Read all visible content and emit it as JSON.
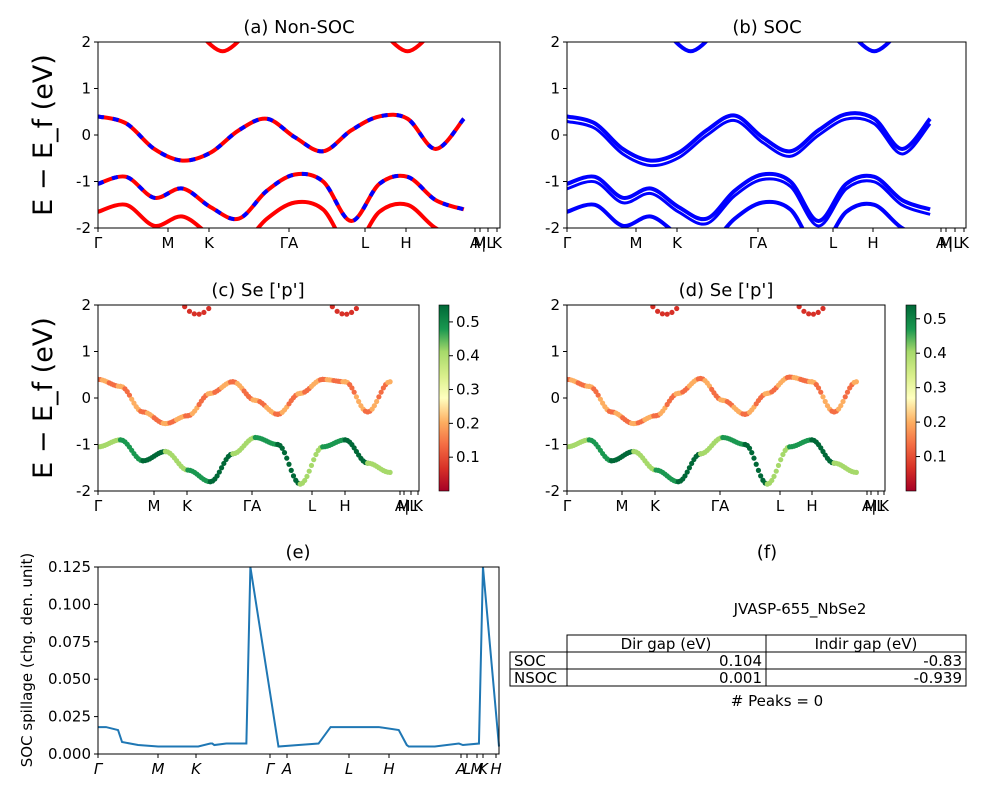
{
  "chart_data": [
    {
      "id": "a",
      "type": "line",
      "title": "(a) Non-SOC",
      "ylabel": "E − E_f (eV)",
      "ylim": [
        -2,
        2
      ],
      "yticks": [
        -2,
        -1,
        0,
        1,
        2
      ],
      "xticks": [
        "Γ",
        "M",
        "K",
        "ΓA",
        "L",
        "H",
        "A",
        "M",
        "|L",
        "K"
      ],
      "series": [
        {
          "color": "#ff0000",
          "dashed_overlay_color": "#0000ff",
          "x": [
            0,
            0.07,
            0.14,
            0.21,
            0.28,
            0.35,
            0.42,
            0.49,
            0.56,
            0.63,
            0.7,
            0.77,
            0.84,
            0.91
          ],
          "y": [
            0.4,
            0.25,
            -0.3,
            -0.55,
            -0.38,
            0.1,
            0.35,
            -0.05,
            -0.35,
            0.1,
            0.4,
            0.35,
            -0.3,
            0.35
          ]
        },
        {
          "color": "#ff0000",
          "dashed_overlay_color": "#0000ff",
          "x": [
            0,
            0.07,
            0.14,
            0.21,
            0.28,
            0.35,
            0.42,
            0.49,
            0.56,
            0.63,
            0.7,
            0.77,
            0.84,
            0.91
          ],
          "y": [
            -1.05,
            -0.9,
            -1.35,
            -1.15,
            -1.55,
            -1.8,
            -1.2,
            -0.85,
            -1.0,
            -1.85,
            -1.05,
            -0.9,
            -1.4,
            -1.6
          ]
        }
      ]
    },
    {
      "id": "b",
      "type": "line",
      "title": "(b) SOC",
      "ylim": [
        -2,
        2
      ],
      "yticks": [
        -2,
        -1,
        0,
        1,
        2
      ],
      "xticks": [
        "Γ",
        "M",
        "K",
        "ΓA",
        "L",
        "H",
        "A",
        "M",
        "|L",
        "K"
      ],
      "series": [
        {
          "color": "#0000ff",
          "x": [
            0,
            0.07,
            0.14,
            0.21,
            0.28,
            0.35,
            0.42,
            0.49,
            0.56,
            0.63,
            0.7,
            0.77,
            0.84,
            0.91
          ],
          "y": [
            0.4,
            0.25,
            -0.3,
            -0.55,
            -0.38,
            0.1,
            0.42,
            -0.05,
            -0.35,
            0.1,
            0.45,
            0.35,
            -0.3,
            0.35
          ]
        },
        {
          "color": "#0000ff",
          "x": [
            0,
            0.07,
            0.14,
            0.21,
            0.28,
            0.35,
            0.42,
            0.49,
            0.56,
            0.63,
            0.7,
            0.77,
            0.84,
            0.91
          ],
          "y": [
            -1.05,
            -0.9,
            -1.35,
            -1.15,
            -1.55,
            -1.8,
            -1.2,
            -0.85,
            -1.0,
            -1.85,
            -1.05,
            -0.9,
            -1.4,
            -1.6
          ]
        }
      ]
    },
    {
      "id": "c",
      "type": "scatter",
      "title": "(c)  Se ['p']",
      "ylabel": "E − E_f (eV)",
      "ylim": [
        -2,
        2
      ],
      "yticks": [
        -2,
        -1,
        0,
        1,
        2
      ],
      "xticks": [
        "Γ",
        "M",
        "K",
        "ΓA",
        "L",
        "H",
        "A",
        "M",
        "|L",
        "K"
      ],
      "colorbar": {
        "ticks": [
          0.1,
          0.2,
          0.3,
          0.4,
          0.5
        ],
        "range": [
          0.0,
          0.55
        ],
        "colormap": "RdYlGn"
      }
    },
    {
      "id": "d",
      "type": "scatter",
      "title": "(d) Se ['p']",
      "ylim": [
        -2,
        2
      ],
      "yticks": [
        -2,
        -1,
        0,
        1,
        2
      ],
      "xticks": [
        "Γ",
        "M",
        "K",
        "ΓA",
        "L",
        "H",
        "A",
        "M",
        "|L",
        "K"
      ],
      "colorbar": {
        "ticks": [
          0.1,
          0.2,
          0.3,
          0.4,
          0.5
        ],
        "range": [
          0.0,
          0.54
        ],
        "colormap": "RdYlGn"
      }
    },
    {
      "id": "e",
      "type": "line",
      "title": "(e)",
      "ylabel": "SOC spillage (chg. den. unit)",
      "ylim": [
        0,
        0.125
      ],
      "yticks": [
        "0.000",
        "0.025",
        "0.050",
        "0.075",
        "0.100",
        "0.125"
      ],
      "xticks": [
        "Γ",
        "M",
        "K",
        "Γ",
        "A",
        "L",
        "H",
        "A",
        "L",
        "M",
        "K",
        "H"
      ],
      "series": [
        {
          "color": "#1f77b4",
          "x": [
            0,
            0.02,
            0.05,
            0.06,
            0.1,
            0.15,
            0.19,
            0.2,
            0.25,
            0.28,
            0.285,
            0.29,
            0.32,
            0.37,
            0.38,
            0.45,
            0.5,
            0.55,
            0.58,
            0.62,
            0.68,
            0.7,
            0.75,
            0.77,
            0.775,
            0.78,
            0.83,
            0.84,
            0.9,
            0.91,
            0.95,
            0.96,
            1.0
          ],
          "y": [
            0.018,
            0.018,
            0.016,
            0.008,
            0.006,
            0.005,
            0.005,
            0.005,
            0.005,
            0.007,
            0.007,
            0.006,
            0.007,
            0.007,
            0.125,
            0.005,
            0.006,
            0.007,
            0.018,
            0.018,
            0.018,
            0.018,
            0.016,
            0.006,
            0.005,
            0.005,
            0.005,
            0.005,
            0.007,
            0.006,
            0.007,
            0.125,
            0.005
          ]
        }
      ]
    },
    {
      "id": "f",
      "type": "table",
      "title": "(f)",
      "subtitle": "JVASP-655_NbSe2",
      "columns": [
        "Dir gap (eV)",
        "Indir gap (eV)"
      ],
      "rows": [
        {
          "label": "SOC",
          "values": [
            "0.104",
            "-0.83"
          ]
        },
        {
          "label": "NSOC",
          "values": [
            "0.001",
            "-0.939"
          ]
        }
      ],
      "footer": "# Peaks = 0"
    }
  ]
}
